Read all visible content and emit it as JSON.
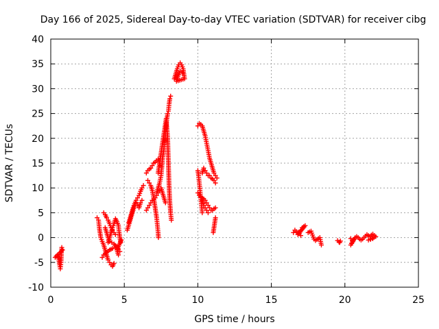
{
  "chart_data": {
    "type": "scatter",
    "title": "Day 166 of 2025, Sidereal Day-to-day VTEC variation (SDTVAR) for receiver cibg",
    "xlabel": "GPS time / hours",
    "ylabel": "SDTVAR / TECUs",
    "xlim": [
      0,
      25
    ],
    "ylim": [
      -10,
      40
    ],
    "x_ticks": [
      0,
      5,
      10,
      15,
      20,
      25
    ],
    "y_ticks": [
      -10,
      -5,
      0,
      5,
      10,
      15,
      20,
      25,
      30,
      35,
      40
    ],
    "grid": true,
    "marker": "+",
    "marker_color": "#ff0000",
    "series": [
      {
        "name": "SDTVAR",
        "segments": [
          [
            [
              0.3,
              -4
            ],
            [
              0.45,
              -3.5
            ],
            [
              0.55,
              -4.5
            ],
            [
              0.6,
              -5.5
            ],
            [
              0.65,
              -6.3
            ],
            [
              0.7,
              -5
            ],
            [
              0.72,
              -3
            ],
            [
              0.75,
              -2
            ],
            [
              0.8,
              -2.5
            ],
            [
              0.55,
              -3.3
            ]
          ],
          [
            [
              3.15,
              4
            ],
            [
              3.25,
              3.5
            ],
            [
              3.3,
              2
            ],
            [
              3.35,
              1
            ],
            [
              3.4,
              0
            ],
            [
              3.5,
              -0.8
            ],
            [
              3.6,
              -1.5
            ],
            [
              3.7,
              -2.5
            ],
            [
              3.8,
              -3.5
            ],
            [
              3.9,
              -4.5
            ],
            [
              4.0,
              -5
            ],
            [
              4.1,
              -5.5
            ],
            [
              4.2,
              -5.8
            ],
            [
              4.3,
              -5.2
            ]
          ],
          [
            [
              3.5,
              -4
            ],
            [
              3.6,
              -3.5
            ],
            [
              3.8,
              -3
            ],
            [
              4.0,
              -2.5
            ],
            [
              4.2,
              -2.2
            ],
            [
              4.4,
              -2
            ],
            [
              4.55,
              -1.8
            ]
          ],
          [
            [
              3.6,
              5
            ],
            [
              3.7,
              4.6
            ],
            [
              3.8,
              4
            ],
            [
              3.9,
              3.5
            ],
            [
              4.0,
              2.8
            ],
            [
              4.1,
              2
            ],
            [
              4.2,
              1.5
            ],
            [
              4.3,
              1
            ],
            [
              4.4,
              0.6
            ]
          ],
          [
            [
              3.7,
              2
            ],
            [
              3.8,
              1
            ],
            [
              3.9,
              0
            ],
            [
              4.0,
              -0.8
            ],
            [
              4.15,
              -1
            ],
            [
              4.3,
              -1.3
            ],
            [
              4.45,
              -1.8
            ],
            [
              4.6,
              -2.3
            ],
            [
              4.7,
              -2.8
            ]
          ],
          [
            [
              3.9,
              -1
            ],
            [
              4.0,
              0
            ],
            [
              4.1,
              1
            ],
            [
              4.2,
              2
            ],
            [
              4.3,
              2.8
            ],
            [
              4.4,
              3.8
            ],
            [
              4.5,
              3.2
            ],
            [
              4.6,
              2.5
            ],
            [
              4.65,
              1
            ],
            [
              4.7,
              0
            ],
            [
              4.75,
              -1
            ],
            [
              4.8,
              -0.5
            ],
            [
              4.5,
              -2.5
            ],
            [
              4.6,
              -3.5
            ]
          ],
          [
            [
              5.3,
              3
            ],
            [
              5.4,
              4
            ],
            [
              5.5,
              5
            ],
            [
              5.6,
              6
            ],
            [
              5.7,
              6.8
            ],
            [
              5.8,
              7.5
            ],
            [
              5.9,
              8
            ],
            [
              6.0,
              8.5
            ],
            [
              6.1,
              9.3
            ],
            [
              6.2,
              10
            ],
            [
              6.3,
              10.5
            ]
          ],
          [
            [
              5.2,
              1.5
            ],
            [
              5.3,
              2.5
            ],
            [
              5.4,
              3.5
            ],
            [
              5.5,
              4.5
            ],
            [
              5.6,
              5.5
            ],
            [
              5.7,
              6.5
            ],
            [
              5.8,
              7
            ],
            [
              5.9,
              6.5
            ],
            [
              6.0,
              6
            ],
            [
              6.1,
              7
            ],
            [
              6.2,
              7.5
            ]
          ],
          [
            [
              6.5,
              13
            ],
            [
              6.6,
              13.5
            ],
            [
              6.7,
              13.8
            ],
            [
              6.8,
              14
            ],
            [
              6.9,
              14.5
            ],
            [
              7.0,
              15
            ],
            [
              7.1,
              15.2
            ],
            [
              7.2,
              15.5
            ],
            [
              7.3,
              15.8
            ],
            [
              7.4,
              15
            ],
            [
              7.45,
              14.5
            ]
          ],
          [
            [
              6.6,
              11.5
            ],
            [
              6.7,
              11
            ],
            [
              6.8,
              10.5
            ],
            [
              6.9,
              9.5
            ],
            [
              7.0,
              8
            ],
            [
              7.05,
              7
            ],
            [
              7.1,
              6
            ],
            [
              7.15,
              5
            ],
            [
              7.2,
              4
            ],
            [
              7.25,
              2.5
            ],
            [
              7.3,
              1
            ],
            [
              7.32,
              0
            ]
          ],
          [
            [
              6.5,
              5.5
            ],
            [
              6.6,
              6
            ],
            [
              6.7,
              6.5
            ],
            [
              6.8,
              7
            ],
            [
              6.9,
              7.5
            ],
            [
              7.0,
              8
            ],
            [
              7.1,
              8
            ],
            [
              7.2,
              8.5
            ],
            [
              7.3,
              9
            ],
            [
              7.4,
              9.5
            ],
            [
              7.5,
              10
            ],
            [
              7.6,
              9
            ],
            [
              7.7,
              8
            ],
            [
              7.8,
              7
            ]
          ],
          [
            [
              7.2,
              9
            ],
            [
              7.3,
              10
            ],
            [
              7.4,
              11
            ],
            [
              7.5,
              12.5
            ],
            [
              7.55,
              14
            ],
            [
              7.6,
              16
            ],
            [
              7.7,
              18
            ],
            [
              7.75,
              19.5
            ],
            [
              7.8,
              21
            ],
            [
              7.85,
              22.5
            ],
            [
              7.9,
              24
            ],
            [
              7.95,
              25
            ],
            [
              8.0,
              25.5
            ],
            [
              8.05,
              27
            ],
            [
              8.1,
              28
            ],
            [
              8.15,
              28.5
            ]
          ],
          [
            [
              7.3,
              13
            ],
            [
              7.4,
              15
            ],
            [
              7.5,
              17
            ],
            [
              7.6,
              19
            ],
            [
              7.7,
              21
            ],
            [
              7.8,
              23
            ],
            [
              7.85,
              24
            ],
            [
              7.9,
              22
            ],
            [
              7.95,
              20
            ],
            [
              8.0,
              15
            ],
            [
              8.05,
              10
            ],
            [
              8.1,
              7
            ],
            [
              8.15,
              5
            ],
            [
              8.2,
              3.5
            ]
          ],
          [
            [
              8.4,
              32
            ],
            [
              8.5,
              33
            ],
            [
              8.6,
              34
            ],
            [
              8.7,
              34.8
            ],
            [
              8.8,
              35.2
            ],
            [
              8.9,
              34.8
            ],
            [
              9.0,
              34
            ],
            [
              9.05,
              33
            ],
            [
              9.1,
              32
            ],
            [
              8.55,
              31.5
            ],
            [
              8.65,
              32.5
            ],
            [
              8.8,
              33.5
            ],
            [
              8.95,
              33.2
            ]
          ],
          [
            [
              10.0,
              22.5
            ],
            [
              10.1,
              23
            ],
            [
              10.2,
              22.8
            ],
            [
              10.3,
              22.5
            ],
            [
              10.4,
              21.5
            ],
            [
              10.5,
              20.5
            ],
            [
              10.6,
              19
            ],
            [
              10.7,
              17.5
            ],
            [
              10.8,
              16
            ],
            [
              10.9,
              15
            ],
            [
              11.0,
              14
            ],
            [
              11.1,
              13
            ],
            [
              11.2,
              12.5
            ],
            [
              11.3,
              12
            ]
          ],
          [
            [
              10.3,
              13
            ],
            [
              10.4,
              14
            ],
            [
              10.5,
              13.5
            ],
            [
              10.6,
              13
            ],
            [
              10.7,
              12.5
            ],
            [
              10.8,
              12.5
            ],
            [
              10.9,
              12
            ],
            [
              11.0,
              11.8
            ],
            [
              11.1,
              11.5
            ],
            [
              11.2,
              11
            ]
          ],
          [
            [
              10.0,
              13.5
            ],
            [
              10.05,
              12.5
            ],
            [
              10.1,
              11
            ],
            [
              10.15,
              9.5
            ],
            [
              10.2,
              8
            ],
            [
              10.25,
              6.5
            ],
            [
              10.3,
              5
            ]
          ],
          [
            [
              10.0,
              9
            ],
            [
              10.1,
              8.5
            ],
            [
              10.2,
              8.2
            ],
            [
              10.3,
              8
            ],
            [
              10.4,
              7.8
            ],
            [
              10.5,
              7.5
            ],
            [
              10.6,
              7
            ],
            [
              10.7,
              6.5
            ],
            [
              10.8,
              6
            ],
            [
              10.9,
              5.5
            ],
            [
              11.0,
              5.5
            ],
            [
              11.1,
              5.8
            ],
            [
              11.2,
              6
            ]
          ],
          [
            [
              10.3,
              7.5
            ],
            [
              10.4,
              6.5
            ],
            [
              10.5,
              6
            ],
            [
              10.6,
              5.5
            ],
            [
              10.7,
              5
            ]
          ],
          [
            [
              11.05,
              1
            ],
            [
              11.1,
              2
            ],
            [
              11.15,
              3
            ],
            [
              11.2,
              4
            ]
          ],
          [
            [
              16.5,
              1
            ],
            [
              16.6,
              1.5
            ],
            [
              16.7,
              1.2
            ],
            [
              16.8,
              1
            ],
            [
              16.9,
              0.8
            ],
            [
              17.0,
              1.5
            ],
            [
              17.1,
              2
            ],
            [
              17.2,
              2.2
            ],
            [
              17.3,
              2.4
            ],
            [
              16.8,
              0.6
            ],
            [
              17.0,
              0.4
            ]
          ],
          [
            [
              17.5,
              1
            ],
            [
              17.7,
              1.3
            ],
            [
              17.8,
              0.5
            ],
            [
              17.9,
              -0.3
            ],
            [
              18.0,
              -0.6
            ],
            [
              18.3,
              0
            ],
            [
              18.35,
              -0.8
            ],
            [
              18.4,
              -1.5
            ]
          ],
          [
            [
              19.5,
              -0.6
            ],
            [
              19.6,
              -0.9
            ],
            [
              19.7,
              -0.7
            ],
            [
              19.65,
              -1
            ]
          ],
          [
            [
              20.4,
              -0.2
            ],
            [
              20.5,
              -0.6
            ],
            [
              20.6,
              -0.4
            ],
            [
              20.4,
              -1.5
            ],
            [
              20.7,
              0
            ],
            [
              20.8,
              0.2
            ],
            [
              20.9,
              0
            ],
            [
              21.0,
              -0.3
            ],
            [
              21.1,
              -0.5
            ],
            [
              21.2,
              -0.3
            ],
            [
              21.3,
              0
            ],
            [
              21.4,
              0.3
            ],
            [
              21.5,
              0.6
            ],
            [
              21.6,
              0.4
            ],
            [
              21.7,
              0.2
            ],
            [
              21.8,
              0.5
            ],
            [
              21.9,
              0.7
            ],
            [
              22.0,
              0.4
            ],
            [
              22.1,
              0.2
            ],
            [
              21.6,
              -0.5
            ],
            [
              21.9,
              -0.2
            ]
          ]
        ]
      }
    ]
  }
}
